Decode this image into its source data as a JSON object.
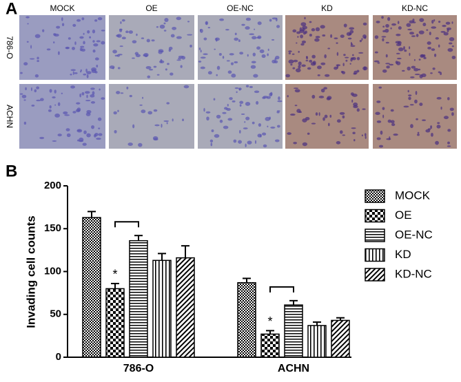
{
  "panel_a": {
    "label": "A",
    "columns": [
      "MOCK",
      "OE",
      "OE-NC",
      "KD",
      "KD-NC"
    ],
    "rows": [
      "786-O",
      "ACHN"
    ]
  },
  "panel_b_label": "B",
  "chart_data": {
    "type": "bar",
    "y_label": "Invading cell counts",
    "categories": [
      "786-O",
      "ACHN"
    ],
    "series": [
      {
        "name": "MOCK",
        "color": "#000000",
        "pattern": "checker",
        "values": [
          163,
          87
        ],
        "errors": [
          7,
          5
        ]
      },
      {
        "name": "OE",
        "color": "#000000",
        "pattern": "checker-large",
        "values": [
          80,
          27
        ],
        "errors": [
          6,
          4
        ]
      },
      {
        "name": "OE-NC",
        "color": "#000000",
        "pattern": "hlines",
        "values": [
          136,
          61
        ],
        "errors": [
          6,
          5
        ]
      },
      {
        "name": "KD",
        "color": "#000000",
        "pattern": "vlines",
        "values": [
          113,
          37
        ],
        "errors": [
          8,
          4
        ]
      },
      {
        "name": "KD-NC",
        "color": "#000000",
        "pattern": "diag",
        "values": [
          116,
          43
        ],
        "errors": [
          14,
          3
        ]
      }
    ],
    "annotations": [
      {
        "text": "*",
        "category": 0,
        "series": 1
      },
      {
        "text": "*",
        "category": 1,
        "series": 1
      }
    ],
    "ylim": [
      0,
      200
    ],
    "yticks": [
      0,
      50,
      100,
      150,
      200
    ],
    "grid": false,
    "legend": "right"
  }
}
